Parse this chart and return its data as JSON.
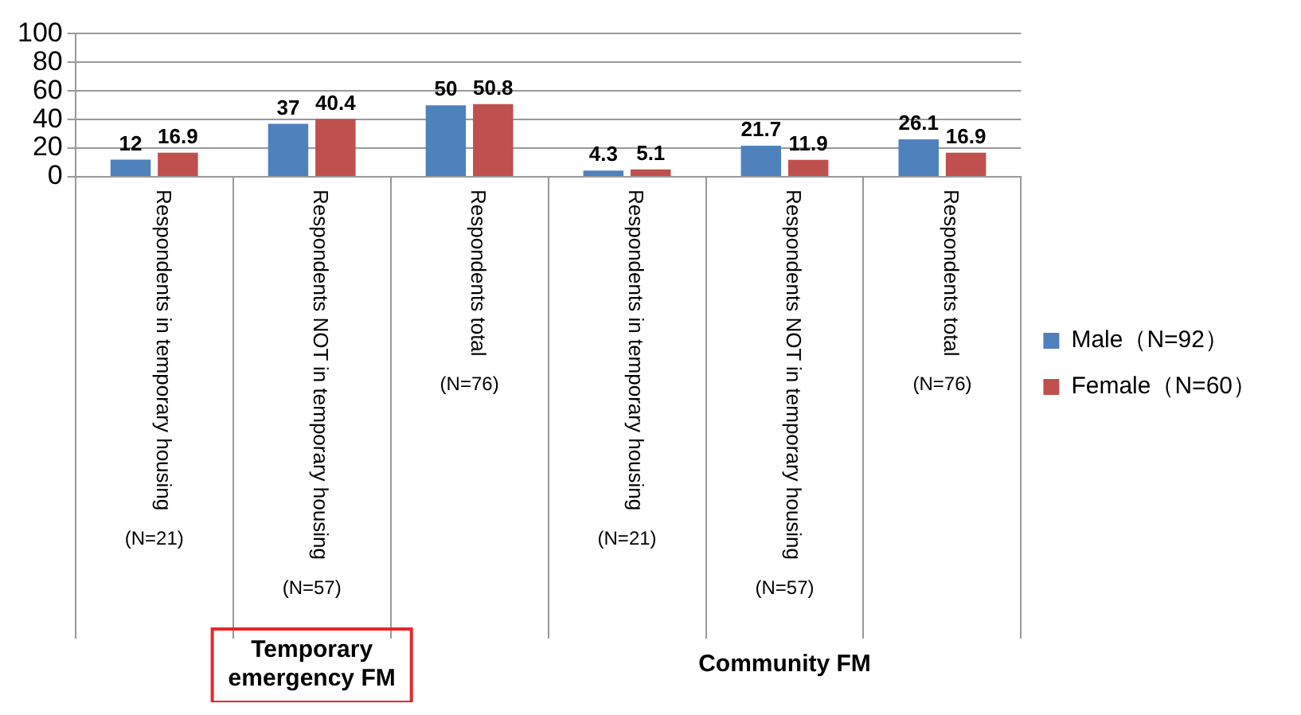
{
  "chart_data": {
    "type": "bar",
    "categories": [
      "Respondents in temporary housing",
      "Respondents NOT in temporary housing",
      "Respondents total",
      "Respondents in temporary housing",
      "Respondents NOT in temporary housing",
      "Respondents total"
    ],
    "series": [
      {
        "name": "Male（N=92）",
        "color": "#4f81bd",
        "values": [
          12,
          37,
          50,
          4.3,
          21.7,
          26.1
        ]
      },
      {
        "name": "Female（N=60）",
        "color": "#c0504d",
        "values": [
          16.9,
          40.4,
          50.8,
          5.1,
          11.9,
          16.9
        ]
      }
    ],
    "ylim": [
      0,
      100
    ],
    "yticks": [
      0,
      20,
      40,
      60,
      80,
      100
    ],
    "grid": "y",
    "legend": "right",
    "data_labels": true,
    "annotations": [
      "(N=21)",
      "(N=57)",
      "(N=76)",
      "(N=21)",
      "(N=57)",
      "(N=76)",
      "Temporary emergency FM",
      "Community FM"
    ]
  }
}
